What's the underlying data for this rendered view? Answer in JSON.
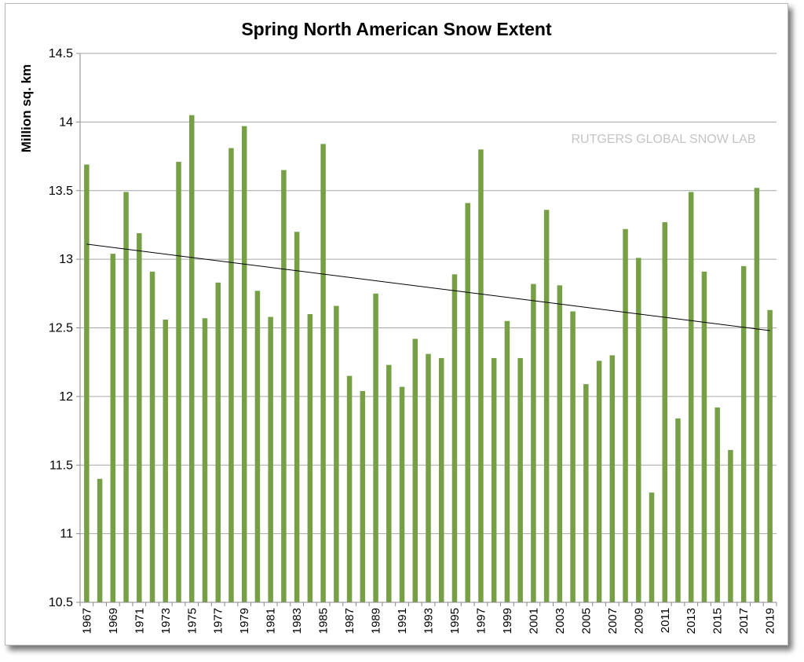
{
  "chart_data": {
    "type": "bar",
    "title": "Spring North American Snow Extent",
    "ylabel": "Million sq. km",
    "xlabel": "",
    "watermark": "RUTGERS GLOBAL SNOW LAB",
    "ylim": [
      10.5,
      14.5
    ],
    "yticks": [
      "10.5",
      "11",
      "11.5",
      "12",
      "12.5",
      "13",
      "13.5",
      "14",
      "14.5"
    ],
    "grid": true,
    "legend": "none",
    "bar_color": "#77a046",
    "trendline": {
      "color": "#000000",
      "start": 13.11,
      "end": 12.48
    },
    "categories": [
      "1967",
      "1968",
      "1969",
      "1970",
      "1971",
      "1972",
      "1973",
      "1974",
      "1975",
      "1976",
      "1977",
      "1978",
      "1979",
      "1980",
      "1981",
      "1982",
      "1983",
      "1984",
      "1985",
      "1986",
      "1987",
      "1988",
      "1989",
      "1990",
      "1991",
      "1992",
      "1993",
      "1994",
      "1995",
      "1996",
      "1997",
      "1998",
      "1999",
      "2000",
      "2001",
      "2002",
      "2003",
      "2004",
      "2005",
      "2006",
      "2007",
      "2008",
      "2009",
      "2010",
      "2011",
      "2012",
      "2013",
      "2014",
      "2015",
      "2016",
      "2017",
      "2018",
      "2019"
    ],
    "tick_labels": [
      "1967",
      "1969",
      "1971",
      "1973",
      "1975",
      "1977",
      "1979",
      "1981",
      "1983",
      "1985",
      "1987",
      "1989",
      "1991",
      "1993",
      "1995",
      "1997",
      "1999",
      "2001",
      "2003",
      "2005",
      "2007",
      "2009",
      "2011",
      "2013",
      "2015",
      "2017",
      "2019"
    ],
    "values": [
      13.69,
      11.4,
      13.04,
      13.49,
      13.19,
      12.91,
      12.56,
      13.71,
      14.05,
      12.57,
      12.83,
      13.81,
      13.97,
      12.77,
      12.58,
      13.65,
      13.2,
      12.6,
      13.84,
      12.66,
      12.15,
      12.04,
      12.75,
      12.23,
      12.07,
      12.42,
      12.31,
      12.28,
      12.89,
      13.41,
      13.8,
      12.28,
      12.55,
      12.28,
      12.82,
      13.36,
      12.81,
      12.62,
      12.09,
      12.26,
      12.3,
      13.22,
      13.01,
      11.3,
      13.27,
      11.84,
      13.49,
      12.91,
      11.92,
      11.61,
      12.95,
      13.52,
      12.63
    ]
  }
}
